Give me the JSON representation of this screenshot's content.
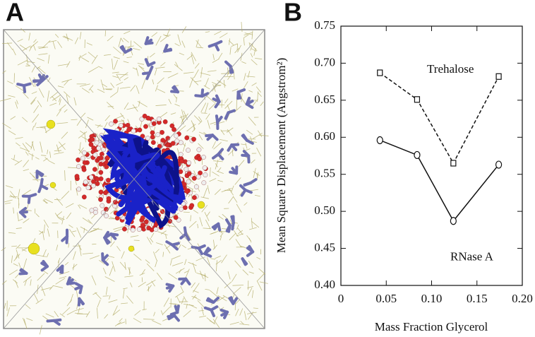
{
  "panel_a": {
    "label": "A"
  },
  "chart_data": {
    "type": "line",
    "panel_label": "B",
    "x_label": "Mass Fraction Glycerol",
    "y_label": "Mean Square Displacement (Angstrom²)",
    "x": [
      0.043,
      0.084,
      0.124,
      0.174
    ],
    "series": [
      {
        "name": "Trehalose",
        "color": "#111111",
        "line_style": "dashed",
        "marker": "square",
        "values": [
          0.687,
          0.651,
          0.565,
          0.682
        ]
      },
      {
        "name": "RNase A",
        "color": "#111111",
        "line_style": "solid",
        "marker": "circle",
        "values": [
          0.596,
          0.576,
          0.487,
          0.563
        ]
      }
    ],
    "xlim": [
      0,
      0.2
    ],
    "xticks": [
      0,
      0.05,
      {
        "value": 0.1,
        "label": "0.10"
      },
      0.15,
      {
        "value": 0.2,
        "label": "0.20"
      }
    ],
    "ylim": [
      0.4,
      0.75
    ],
    "yticks": [
      {
        "value": 0.4,
        "label": "0.40"
      },
      0.45,
      {
        "value": 0.5,
        "label": "0.50"
      },
      0.55,
      {
        "value": 0.6,
        "label": "0.60"
      },
      0.65,
      {
        "value": 0.7,
        "label": "0.70"
      },
      0.75
    ]
  }
}
